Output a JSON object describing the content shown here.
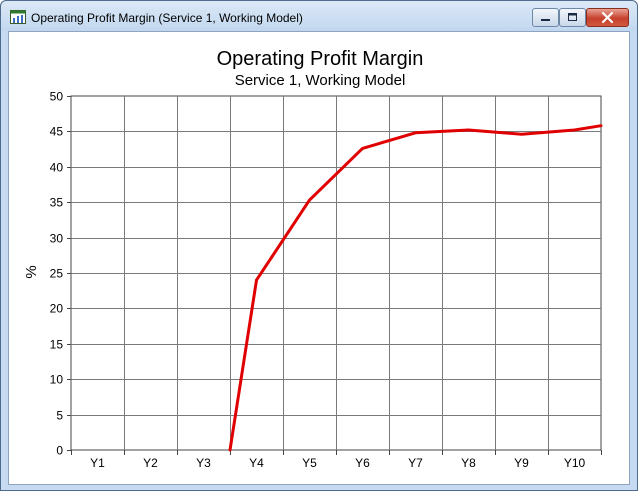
{
  "window": {
    "title": "Operating Profit Margin (Service 1, Working Model)",
    "icon": "chart-app-icon",
    "controls": [
      "minimize-icon",
      "maximize-icon",
      "close-icon"
    ]
  },
  "chart_data": {
    "type": "line",
    "title": "Operating Profit Margin",
    "subtitle": "Service 1, Working Model",
    "xlabel": "",
    "ylabel": "%",
    "categories": [
      "Y1",
      "Y2",
      "Y3",
      "Y4",
      "Y5",
      "Y6",
      "Y7",
      "Y8",
      "Y9",
      "Y10"
    ],
    "series": [
      {
        "color": "#e00000",
        "x": [
          3.5,
          4,
          5,
          6,
          7,
          8,
          9,
          10,
          10.5
        ],
        "values": [
          0,
          24,
          35.3,
          42.6,
          44.8,
          45.2,
          44.6,
          45.2,
          45.8
        ]
      }
    ],
    "ylim": [
      0,
      50
    ],
    "yticks": [
      0,
      5,
      10,
      15,
      20,
      25,
      30,
      35,
      40,
      45,
      50
    ],
    "xlim": [
      0.5,
      10.5
    ],
    "grid": true,
    "legend": "none"
  }
}
